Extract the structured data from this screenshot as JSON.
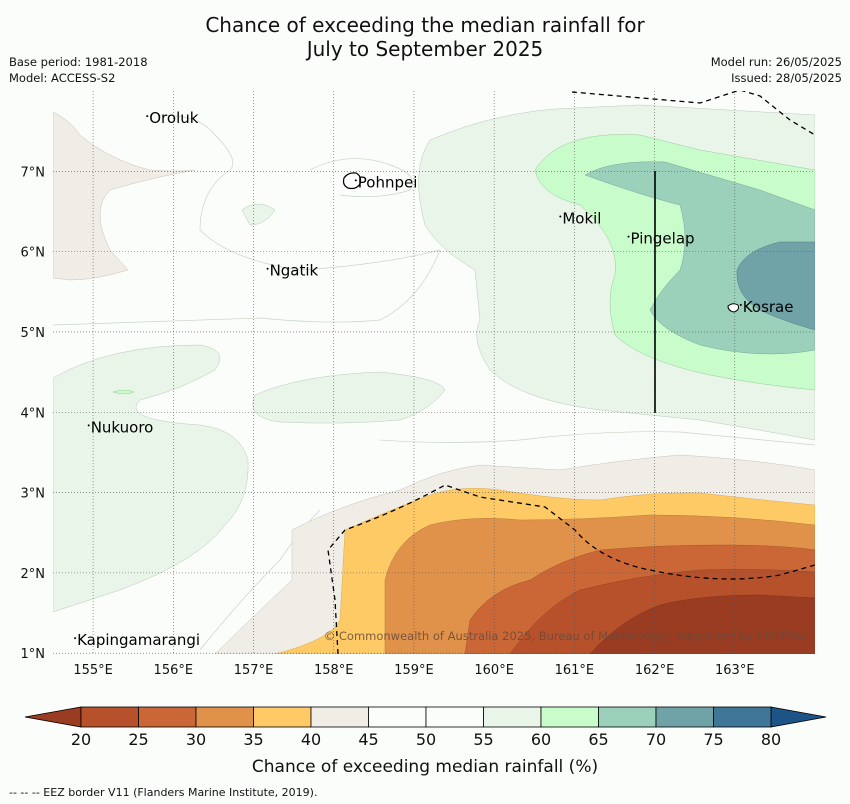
{
  "title_line1": "Chance of exceeding the median rainfall for",
  "title_line2": "July to September 2025",
  "meta": {
    "base_period": "Base period: 1981-2018",
    "model": "Model: ACCESS-S2",
    "model_run": "Model run: 26/05/2025",
    "issued": "Issued: 28/05/2025"
  },
  "axes": {
    "lon_ticks": [
      "155°E",
      "156°E",
      "157°E",
      "158°E",
      "159°E",
      "160°E",
      "161°E",
      "162°E",
      "163°E"
    ],
    "lat_ticks": [
      "7°N",
      "6°N",
      "5°N",
      "4°N",
      "3°N",
      "2°N",
      "1°N"
    ]
  },
  "places": [
    {
      "name": "Oroluk",
      "lon": 155.7,
      "lat": 7.6
    },
    {
      "name": "Pohnpei",
      "lon": 158.3,
      "lat": 6.8
    },
    {
      "name": "Mokil",
      "lon": 160.85,
      "lat": 6.35
    },
    {
      "name": "Pingelap",
      "lon": 161.7,
      "lat": 6.1
    },
    {
      "name": "Ngatik",
      "lon": 157.2,
      "lat": 5.7
    },
    {
      "name": "Kosrae",
      "lon": 163.1,
      "lat": 5.25
    },
    {
      "name": "Nukuoro",
      "lon": 154.97,
      "lat": 3.75
    },
    {
      "name": "Kapingamarangi",
      "lon": 154.8,
      "lat": 1.1
    }
  ],
  "copyright": "© Commonwealth of Australia 2025, Bureau of Meteorology, supported by COSPPac",
  "colorbar": {
    "ticks": [
      "20",
      "25",
      "30",
      "35",
      "40",
      "45",
      "50",
      "55",
      "60",
      "65",
      "70",
      "75",
      "80"
    ],
    "colors": [
      "#b6512b",
      "#cb6636",
      "#e0924a",
      "#fdca65",
      "#f0ece6",
      "#fbfdfb",
      "#fbfdfb",
      "#eaf5ea",
      "#c9fccb",
      "#9bd0ba",
      "#6fa3a8",
      "#3f7698"
    ],
    "under_color": "#9a3c22",
    "over_color": "#1d5488",
    "label": "Chance of exceeding median rainfall (%)"
  },
  "footnote": "-- -- -- EEZ border V11 (Flanders Marine Institute, 2019)."
}
